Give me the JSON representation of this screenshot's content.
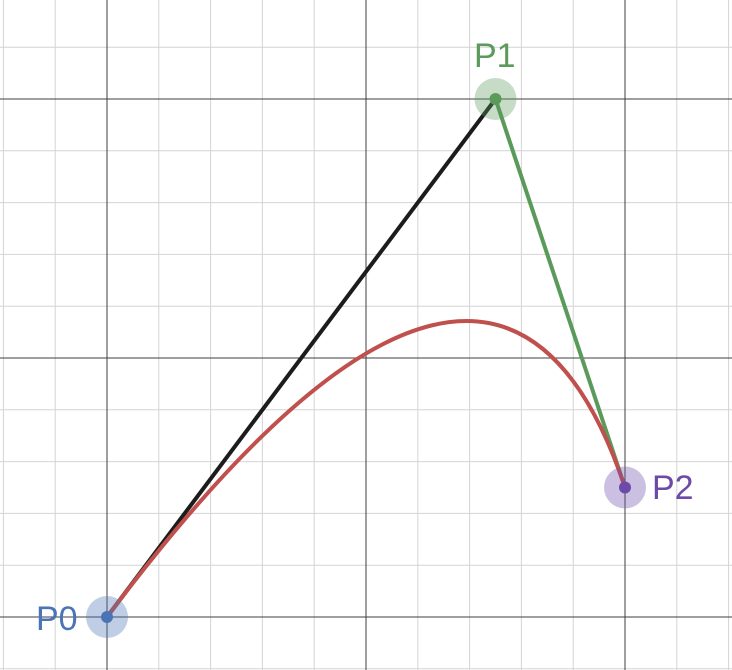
{
  "colors": {
    "background": "#ffffff",
    "grid_major": "#3f3f3f",
    "grid_minor": "#d4d4d4",
    "segment_p0_p1": "#1c1c1c",
    "segment_p1_p2": "#5b9a5b",
    "curve": "#c0504d",
    "p0": "#4a74b5",
    "p1": "#5b9a5b",
    "p2": "#6b4aa8"
  },
  "points": {
    "p0": {
      "label": "P0",
      "x": 0,
      "y": 0
    },
    "p1": {
      "label": "P1",
      "x": 1.5,
      "y": 2
    },
    "p2": {
      "label": "P2",
      "x": 2,
      "y": 0.5
    }
  },
  "curve": {
    "type": "quadratic-bezier",
    "control_points": [
      "p0",
      "p1",
      "p2"
    ]
  },
  "grid": {
    "visible": true,
    "major_step": 1,
    "minor_step": 0.2
  }
}
